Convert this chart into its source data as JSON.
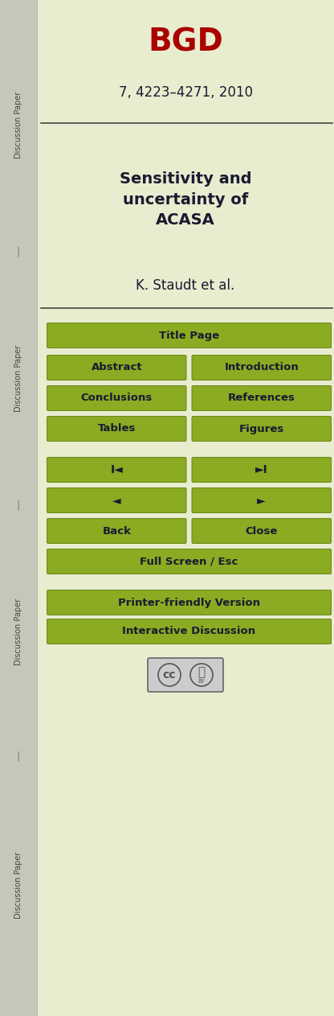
{
  "bg_color": "#e8edcf",
  "sidebar_color": "#c5c8b8",
  "main_bg": "#e8edcf",
  "bgd_text": "BGD",
  "bgd_color": "#aa0000",
  "subtitle_text": "7, 4223–4271, 2010",
  "title_text": "Sensitivity and\nuncertainty of\nACASA",
  "author_text": "K. Staudt et al.",
  "divider_color": "#444444",
  "button_color": "#8aab22",
  "button_text_color": "#1a1a30",
  "button_border_color": "#6a8518",
  "fig_width": 4.16,
  "fig_height": 12.63,
  "dpi": 100
}
